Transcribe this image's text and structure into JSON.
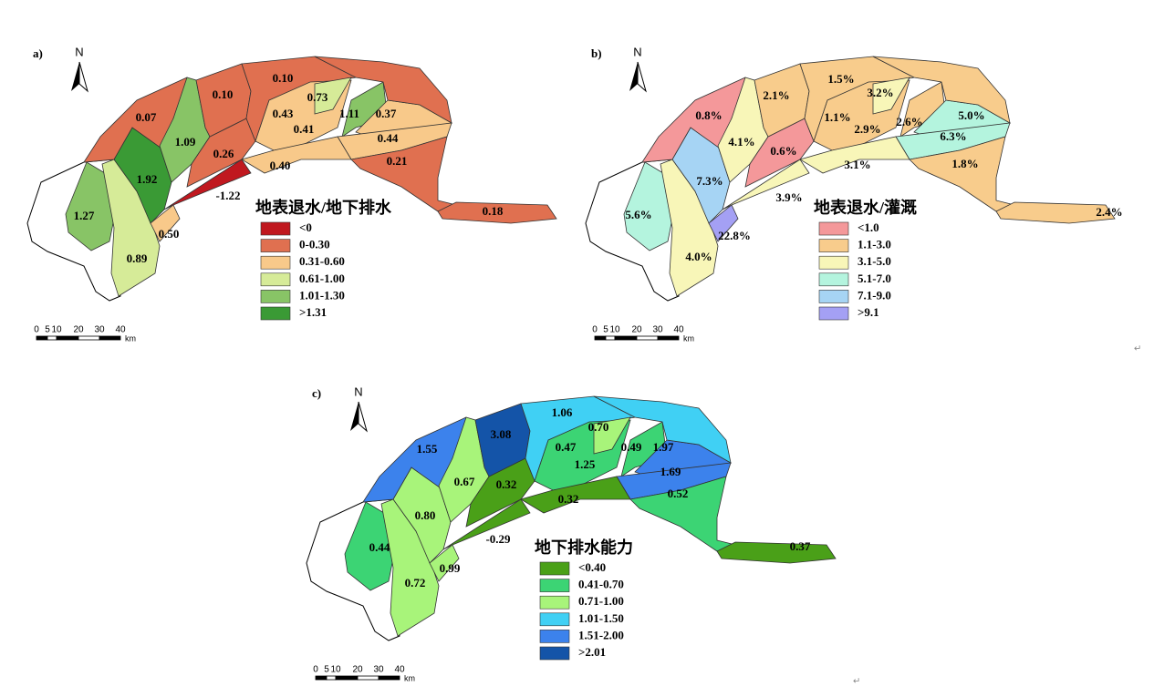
{
  "panels": [
    {
      "label": "a)",
      "north": "N",
      "legend": {
        "title": "地表退水/地下排水",
        "items": [
          {
            "label": "<0",
            "color": "#c0181f"
          },
          {
            "label": "0-0.30",
            "color": "#e07050"
          },
          {
            "label": "0.31-0.60",
            "color": "#f8c98a"
          },
          {
            "label": "0.61-1.00",
            "color": "#d6eb98"
          },
          {
            "label": "1.01-1.30",
            "color": "#88c466"
          },
          {
            "label": ">1.31",
            "color": "#3a9a35"
          }
        ]
      },
      "regions": [
        "0.07",
        "0.10",
        "0.10",
        "0.73",
        "1.09",
        "0.43",
        "1.11",
        "0.37",
        "0.41",
        "0.44",
        "0.26",
        "0.40",
        "0.21",
        "1.92",
        "-1.22",
        "1.27",
        "0.50",
        "0.18",
        "0.89"
      ],
      "scale_bar": {
        "ticks": [
          "0",
          "5",
          "10",
          "20",
          "30",
          "40"
        ],
        "unit": "km"
      }
    },
    {
      "label": "b)",
      "north": "N",
      "legend": {
        "title": "地表退水/灌溉",
        "items": [
          {
            "label": "<1.0",
            "color": "#f4989a"
          },
          {
            "label": "1.1-3.0",
            "color": "#f8cc8c"
          },
          {
            "label": "3.1-5.0",
            "color": "#f8f6b8"
          },
          {
            "label": "5.1-7.0",
            "color": "#b4f4de"
          },
          {
            "label": "7.1-9.0",
            "color": "#a6d4f4"
          },
          {
            "label": ">9.1",
            "color": "#a4a0f4"
          }
        ]
      },
      "regions": [
        "0.8%",
        "2.1%",
        "1.5%",
        "3.2%",
        "1.1%",
        "2.9%",
        "2.6%",
        "5.0%",
        "6.3%",
        "4.1%",
        "0.6%",
        "3.1%",
        "1.8%",
        "7.3%",
        "3.9%",
        "5.6%",
        "22.8%",
        "2.4%",
        "4.0%"
      ],
      "scale_bar": {
        "ticks": [
          "0",
          "5",
          "10",
          "20",
          "30",
          "40"
        ],
        "unit": "km"
      }
    },
    {
      "label": "c)",
      "north": "N",
      "legend": {
        "title": "地下排水能力",
        "items": [
          {
            "label": "<0.40",
            "color": "#4aa018"
          },
          {
            "label": "0.41-0.70",
            "color": "#3cd474"
          },
          {
            "label": "0.71-1.00",
            "color": "#a8f47a"
          },
          {
            "label": "1.01-1.50",
            "color": "#40d0f4"
          },
          {
            "label": "1.51-2.00",
            "color": "#3c82ec"
          },
          {
            "label": ">2.01",
            "color": "#1454a8"
          }
        ]
      },
      "regions": [
        "3.08",
        "1.06",
        "0.70",
        "1.55",
        "0.47",
        "0.49",
        "1.97",
        "1.25",
        "1.69",
        "0.67",
        "0.32",
        "0.52",
        "0.32",
        "0.80",
        "-0.29",
        "0.44",
        "0.37",
        "0.99",
        "0.72"
      ],
      "scale_bar": {
        "ticks": [
          "0",
          "5",
          "10",
          "20",
          "30",
          "40"
        ],
        "unit": "km"
      }
    }
  ],
  "paragraph_marks": [
    "↵",
    "↵"
  ]
}
